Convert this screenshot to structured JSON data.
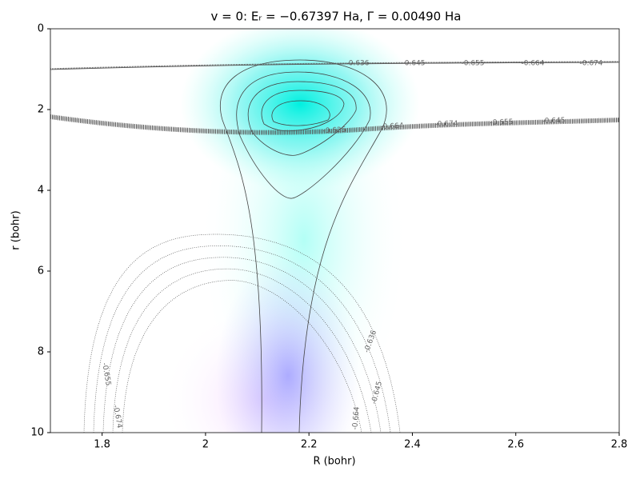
{
  "chart_data": {
    "type": "contour",
    "title": "v = 0:  Eᵣ = −0.67397 Ha,  Γ = 0.00490 Ha",
    "xlabel": "R (bohr)",
    "ylabel": "r (bohr)",
    "xlim": [
      1.7,
      2.8
    ],
    "ylim": [
      10,
      0
    ],
    "xticks": [
      1.8,
      2.0,
      2.2,
      2.4,
      2.6,
      2.8
    ],
    "yticks": [
      0,
      2,
      4,
      6,
      8,
      10
    ],
    "levels": [
      -0.636,
      -0.645,
      -0.655,
      -0.664,
      -0.674
    ],
    "line_color": "#555555"
  }
}
